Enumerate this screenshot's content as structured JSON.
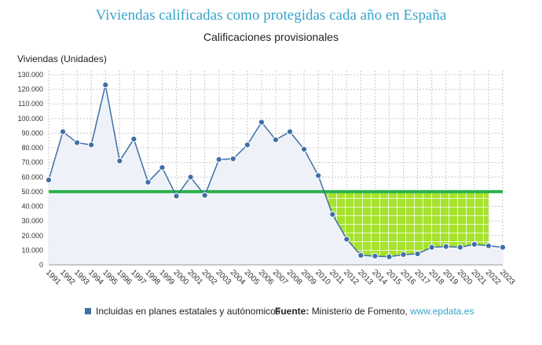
{
  "header": {
    "title": "Viviendas calificadas como protegidas cada año en España",
    "subtitle": "Calificaciones provisionales"
  },
  "legend": {
    "series_label": "Incluidas en planes estatales y autónomicos"
  },
  "source": {
    "label": "Fuente:",
    "text": "Ministerio de Fomento, ",
    "link": "www.epdata.es"
  },
  "colors": {
    "line": "#3f6fa6",
    "area": "#eef2f8",
    "threshold": "#2bb24c",
    "deficit_fill": "#a6e22e",
    "grid": "#c8c8c8"
  },
  "chart_data": {
    "type": "line",
    "title": "Viviendas calificadas como protegidas cada año en España",
    "subtitle": "Calificaciones provisionales",
    "ylabel": "Viviendas (Unidades)",
    "xlabel": "",
    "ylim": [
      0,
      130000
    ],
    "yticks": [
      0,
      10000,
      20000,
      30000,
      40000,
      50000,
      60000,
      70000,
      80000,
      90000,
      100000,
      110000,
      120000,
      130000
    ],
    "ytick_labels": [
      "0",
      "10.000",
      "20.000",
      "30.000",
      "40.000",
      "50.000",
      "60.000",
      "70.000",
      "80.000",
      "90.000",
      "100.000",
      "110.000",
      "120.000",
      "130.000"
    ],
    "x": [
      "1991",
      "1992",
      "1993",
      "1994",
      "1995",
      "1996",
      "1997",
      "1998",
      "1999",
      "2000",
      "2001",
      "2002",
      "2003",
      "2004",
      "2005",
      "2006",
      "2007",
      "2008",
      "2009",
      "2010",
      "2011",
      "2012",
      "2013",
      "2014",
      "2015",
      "2016",
      "2017",
      "2018",
      "2019",
      "2020",
      "2021",
      "2022",
      "2023"
    ],
    "series": [
      {
        "name": "Incluidas en planes estatales y autónomicos",
        "values": [
          58000,
          91000,
          83500,
          82000,
          123000,
          71000,
          86000,
          56500,
          66500,
          47000,
          60000,
          47500,
          72000,
          72500,
          82000,
          97500,
          85500,
          91000,
          79000,
          61000,
          34500,
          17500,
          6500,
          6000,
          5500,
          7000,
          7500,
          12000,
          12500,
          12000,
          14000,
          13000,
          12000
        ]
      }
    ],
    "threshold": 50000,
    "grid": true,
    "legend_position": "bottom"
  }
}
